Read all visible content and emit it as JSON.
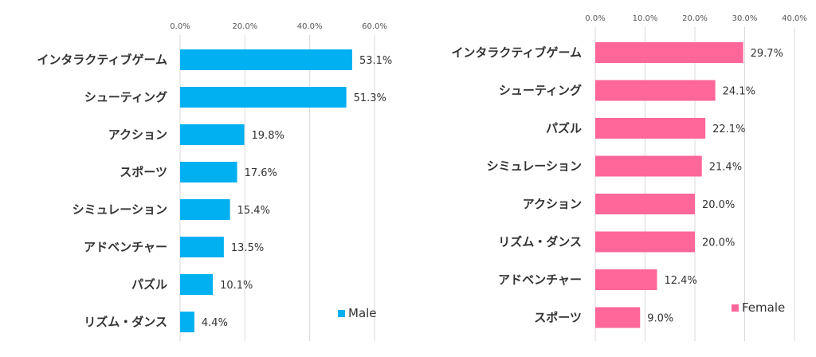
{
  "chart_data": [
    {
      "type": "bar",
      "orientation": "horizontal",
      "categories": [
        "インタラクティブゲーム",
        "シューティング",
        "アクション",
        "スポーツ",
        "シミュレーション",
        "アドベンチャー",
        "パズル",
        "リズム・ダンス"
      ],
      "series": [
        {
          "name": "Male",
          "values": [
            53.1,
            51.3,
            19.8,
            17.6,
            15.4,
            13.5,
            10.1,
            4.4
          ]
        }
      ],
      "xlim": [
        0,
        60
      ],
      "ticks": [
        "0.0%",
        "20.0%",
        "40.0%",
        "60.0%"
      ],
      "tick_values": [
        0,
        20,
        40,
        60
      ],
      "value_labels": [
        "53.1%",
        "51.3%",
        "19.8%",
        "17.6%",
        "15.4%",
        "13.5%",
        "10.1%",
        "4.4%"
      ],
      "color": "#00b0f0",
      "grid": true,
      "axis_position": "top",
      "legend_position": "bottom-right"
    },
    {
      "type": "bar",
      "orientation": "horizontal",
      "categories": [
        "インタラクティブゲーム",
        "シューティング",
        "パズル",
        "シミュレーション",
        "アクション",
        "リズム・ダンス",
        "アドベンチャー",
        "スポーツ"
      ],
      "series": [
        {
          "name": "Female",
          "values": [
            29.7,
            24.1,
            22.1,
            21.4,
            20.0,
            20.0,
            12.4,
            9.0
          ]
        }
      ],
      "xlim": [
        0,
        40
      ],
      "ticks": [
        "0.0%",
        "10.0%",
        "20.0%",
        "30.0%",
        "40.0%"
      ],
      "tick_values": [
        0,
        10,
        20,
        30,
        40
      ],
      "value_labels": [
        "29.7%",
        "24.1%",
        "22.1%",
        "21.4%",
        "20.0%",
        "20.0%",
        "12.4%",
        "9.0%"
      ],
      "color": "#ff6699",
      "grid": true,
      "axis_position": "top",
      "legend_position": "bottom-right"
    }
  ]
}
